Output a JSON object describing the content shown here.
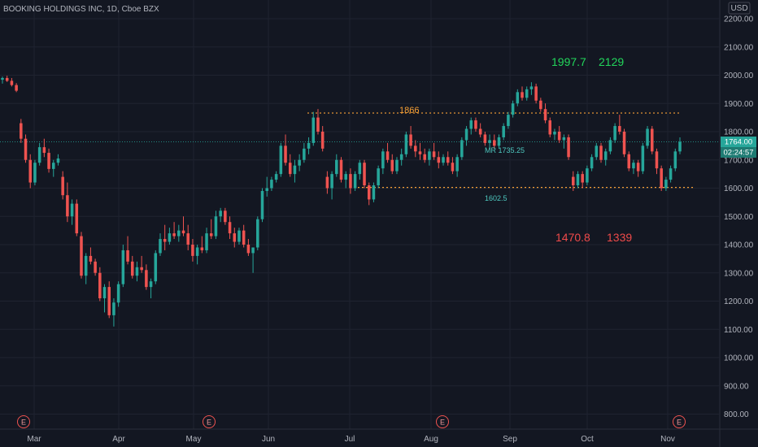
{
  "header": {
    "title": "BOOKING HOLDINGS INC, 1D, Cboe BZX"
  },
  "currency_badge": "USD",
  "price_tag": {
    "value": "1764.00",
    "countdown": "02:24:57"
  },
  "colors": {
    "background": "#131722",
    "up": "#26a69a",
    "down": "#ef5350",
    "grid": "#1f2330",
    "level_line": "#f7a035",
    "green_text": "#22d65b",
    "red_text": "#ef4a4a"
  },
  "chart_data": {
    "type": "candlestick",
    "title": "BOOKING HOLDINGS INC, 1D, Cboe BZX",
    "ylim": [
      750,
      2250
    ],
    "y_ticks": [
      "2200.00",
      "2100.00",
      "2000.00",
      "1900.00",
      "1800.00",
      "1700.00",
      "1600.00",
      "1500.00",
      "1400.00",
      "1300.00",
      "1200.00",
      "1100.00",
      "1000.00",
      "900.00",
      "800.00"
    ],
    "x_labels": [
      "Mar",
      "Apr",
      "May",
      "Jun",
      "Jul",
      "Aug",
      "Sep",
      "Oct",
      "Nov"
    ],
    "earnings_markers": [
      "E",
      "E",
      "E",
      "E"
    ],
    "levels": [
      {
        "label": "1866",
        "value": 1866
      },
      {
        "label": "1602.5",
        "value": 1602.5
      },
      {
        "label": "MR 1735.25",
        "value": 1735.25
      }
    ],
    "targets_up": [
      "1997.7",
      "2129"
    ],
    "targets_down": [
      "1470.8",
      "1339"
    ],
    "last_price": 1764,
    "candles": [
      [
        1984,
        1995,
        1970,
        1990
      ],
      [
        1990,
        1998,
        1976,
        1980
      ],
      [
        1980,
        1990,
        1960,
        1965
      ],
      [
        1965,
        1972,
        1940,
        1945
      ],
      [
        1830,
        1845,
        1760,
        1775
      ],
      [
        1775,
        1790,
        1690,
        1700
      ],
      [
        1700,
        1720,
        1600,
        1620
      ],
      [
        1620,
        1700,
        1610,
        1690
      ],
      [
        1690,
        1760,
        1680,
        1745
      ],
      [
        1745,
        1775,
        1710,
        1725
      ],
      [
        1725,
        1740,
        1655,
        1668
      ],
      [
        1668,
        1700,
        1640,
        1690
      ],
      [
        1690,
        1720,
        1680,
        1705
      ],
      [
        1640,
        1660,
        1560,
        1575
      ],
      [
        1575,
        1620,
        1480,
        1500
      ],
      [
        1500,
        1560,
        1470,
        1545
      ],
      [
        1545,
        1560,
        1430,
        1440
      ],
      [
        1430,
        1445,
        1280,
        1290
      ],
      [
        1290,
        1370,
        1260,
        1360
      ],
      [
        1360,
        1390,
        1330,
        1340
      ],
      [
        1340,
        1350,
        1290,
        1300
      ],
      [
        1300,
        1320,
        1200,
        1210
      ],
      [
        1210,
        1260,
        1160,
        1250
      ],
      [
        1250,
        1270,
        1140,
        1150
      ],
      [
        1150,
        1210,
        1110,
        1195
      ],
      [
        1195,
        1270,
        1180,
        1260
      ],
      [
        1260,
        1400,
        1250,
        1380
      ],
      [
        1380,
        1430,
        1330,
        1340
      ],
      [
        1340,
        1360,
        1280,
        1290
      ],
      [
        1290,
        1340,
        1270,
        1320
      ],
      [
        1320,
        1360,
        1300,
        1310
      ],
      [
        1310,
        1330,
        1240,
        1250
      ],
      [
        1250,
        1280,
        1210,
        1270
      ],
      [
        1270,
        1380,
        1260,
        1370
      ],
      [
        1370,
        1440,
        1360,
        1420
      ],
      [
        1420,
        1470,
        1380,
        1410
      ],
      [
        1410,
        1460,
        1400,
        1440
      ],
      [
        1440,
        1480,
        1420,
        1430
      ],
      [
        1430,
        1470,
        1410,
        1450
      ],
      [
        1450,
        1500,
        1430,
        1440
      ],
      [
        1440,
        1470,
        1380,
        1400
      ],
      [
        1400,
        1420,
        1340,
        1360
      ],
      [
        1360,
        1400,
        1330,
        1390
      ],
      [
        1390,
        1430,
        1370,
        1380
      ],
      [
        1380,
        1460,
        1370,
        1440
      ],
      [
        1440,
        1490,
        1420,
        1430
      ],
      [
        1430,
        1520,
        1420,
        1500
      ],
      [
        1500,
        1530,
        1480,
        1520
      ],
      [
        1520,
        1530,
        1470,
        1480
      ],
      [
        1480,
        1500,
        1420,
        1440
      ],
      [
        1440,
        1460,
        1390,
        1410
      ],
      [
        1410,
        1460,
        1400,
        1450
      ],
      [
        1450,
        1470,
        1390,
        1400
      ],
      [
        1400,
        1420,
        1360,
        1370
      ],
      [
        1370,
        1390,
        1300,
        1390
      ],
      [
        1390,
        1500,
        1380,
        1490
      ],
      [
        1490,
        1600,
        1480,
        1590
      ],
      [
        1590,
        1640,
        1570,
        1600
      ],
      [
        1600,
        1640,
        1590,
        1630
      ],
      [
        1630,
        1660,
        1620,
        1650
      ],
      [
        1650,
        1760,
        1640,
        1750
      ],
      [
        1750,
        1790,
        1680,
        1690
      ],
      [
        1690,
        1720,
        1640,
        1650
      ],
      [
        1650,
        1700,
        1620,
        1680
      ],
      [
        1680,
        1720,
        1660,
        1700
      ],
      [
        1700,
        1760,
        1690,
        1740
      ],
      [
        1740,
        1780,
        1720,
        1760
      ],
      [
        1760,
        1870,
        1750,
        1850
      ],
      [
        1850,
        1880,
        1790,
        1800
      ],
      [
        1800,
        1820,
        1730,
        1740
      ],
      [
        1640,
        1660,
        1580,
        1600
      ],
      [
        1600,
        1660,
        1560,
        1650
      ],
      [
        1650,
        1720,
        1640,
        1700
      ],
      [
        1700,
        1710,
        1620,
        1630
      ],
      [
        1630,
        1660,
        1600,
        1650
      ],
      [
        1650,
        1670,
        1580,
        1600
      ],
      [
        1600,
        1660,
        1590,
        1650
      ],
      [
        1650,
        1700,
        1630,
        1690
      ],
      [
        1690,
        1700,
        1600,
        1610
      ],
      [
        1610,
        1620,
        1540,
        1560
      ],
      [
        1560,
        1620,
        1550,
        1610
      ],
      [
        1610,
        1680,
        1600,
        1670
      ],
      [
        1670,
        1740,
        1650,
        1730
      ],
      [
        1730,
        1760,
        1690,
        1700
      ],
      [
        1700,
        1720,
        1650,
        1660
      ],
      [
        1660,
        1710,
        1650,
        1700
      ],
      [
        1700,
        1740,
        1680,
        1720
      ],
      [
        1720,
        1800,
        1710,
        1790
      ],
      [
        1790,
        1820,
        1740,
        1750
      ],
      [
        1750,
        1770,
        1710,
        1730
      ],
      [
        1730,
        1760,
        1700,
        1720
      ],
      [
        1720,
        1740,
        1690,
        1700
      ],
      [
        1700,
        1740,
        1680,
        1730
      ],
      [
        1730,
        1760,
        1700,
        1710
      ],
      [
        1710,
        1730,
        1670,
        1690
      ],
      [
        1690,
        1720,
        1680,
        1710
      ],
      [
        1710,
        1730,
        1680,
        1690
      ],
      [
        1690,
        1710,
        1650,
        1660
      ],
      [
        1660,
        1720,
        1640,
        1710
      ],
      [
        1710,
        1780,
        1700,
        1770
      ],
      [
        1770,
        1820,
        1750,
        1810
      ],
      [
        1810,
        1850,
        1790,
        1840
      ],
      [
        1840,
        1850,
        1800,
        1810
      ],
      [
        1810,
        1830,
        1780,
        1790
      ],
      [
        1790,
        1800,
        1750,
        1760
      ],
      [
        1760,
        1790,
        1740,
        1770
      ],
      [
        1770,
        1790,
        1740,
        1750
      ],
      [
        1750,
        1790,
        1740,
        1780
      ],
      [
        1780,
        1830,
        1770,
        1820
      ],
      [
        1820,
        1870,
        1810,
        1860
      ],
      [
        1860,
        1910,
        1850,
        1900
      ],
      [
        1900,
        1950,
        1890,
        1940
      ],
      [
        1940,
        1960,
        1910,
        1920
      ],
      [
        1920,
        1960,
        1910,
        1950
      ],
      [
        1950,
        1975,
        1930,
        1960
      ],
      [
        1960,
        1970,
        1900,
        1910
      ],
      [
        1910,
        1920,
        1870,
        1880
      ],
      [
        1880,
        1900,
        1830,
        1840
      ],
      [
        1840,
        1850,
        1780,
        1790
      ],
      [
        1790,
        1810,
        1770,
        1800
      ],
      [
        1800,
        1820,
        1760,
        1770
      ],
      [
        1770,
        1790,
        1740,
        1780
      ],
      [
        1780,
        1790,
        1700,
        1710
      ],
      [
        1640,
        1660,
        1590,
        1610
      ],
      [
        1610,
        1660,
        1600,
        1650
      ],
      [
        1650,
        1660,
        1600,
        1620
      ],
      [
        1620,
        1680,
        1610,
        1670
      ],
      [
        1670,
        1720,
        1660,
        1710
      ],
      [
        1710,
        1760,
        1700,
        1750
      ],
      [
        1750,
        1760,
        1690,
        1700
      ],
      [
        1700,
        1740,
        1680,
        1730
      ],
      [
        1730,
        1780,
        1720,
        1770
      ],
      [
        1770,
        1830,
        1760,
        1820
      ],
      [
        1820,
        1860,
        1790,
        1800
      ],
      [
        1800,
        1810,
        1710,
        1720
      ],
      [
        1720,
        1730,
        1660,
        1670
      ],
      [
        1670,
        1700,
        1650,
        1690
      ],
      [
        1690,
        1700,
        1640,
        1660
      ],
      [
        1660,
        1760,
        1650,
        1750
      ],
      [
        1750,
        1820,
        1740,
        1810
      ],
      [
        1810,
        1820,
        1720,
        1730
      ],
      [
        1730,
        1740,
        1650,
        1670
      ],
      [
        1670,
        1680,
        1590,
        1600
      ],
      [
        1600,
        1640,
        1590,
        1630
      ],
      [
        1630,
        1680,
        1620,
        1670
      ],
      [
        1670,
        1740,
        1660,
        1730
      ],
      [
        1730,
        1780,
        1720,
        1764
      ]
    ]
  }
}
